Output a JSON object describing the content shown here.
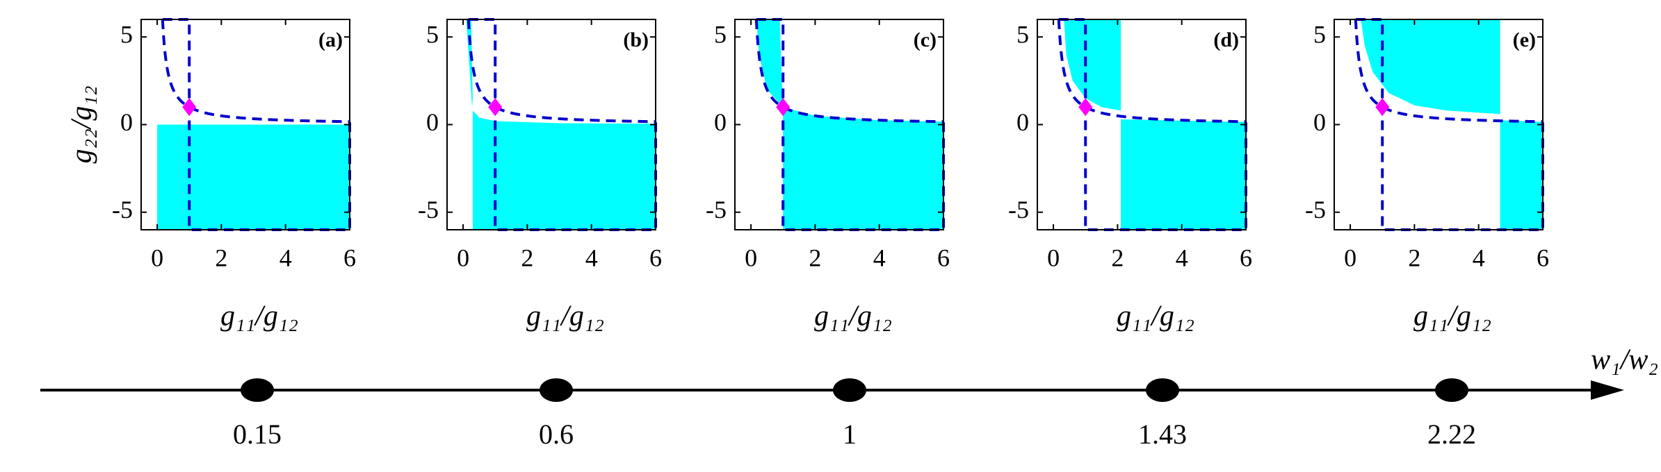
{
  "chart_data": [
    {
      "type": "region",
      "label": "(a)",
      "xlabel": "g₁₁/g₁₂",
      "ylabel": "g₂₂/g₁₂",
      "xlim": [
        -0.5,
        6
      ],
      "ylim": [
        -6,
        6
      ],
      "xticks": [
        0,
        2,
        4,
        6
      ],
      "yticks": [
        -5,
        0,
        5
      ],
      "color": "#00ffff",
      "line_color": "#0000cc",
      "point_color": "#ff00ff",
      "point": {
        "x": 1,
        "y": 1
      },
      "regions": [
        {
          "x": [
            0,
            6,
            6,
            0
          ],
          "y": [
            -6,
            -6,
            0,
            0
          ]
        }
      ]
    },
    {
      "type": "region",
      "label": "(b)",
      "xlabel": "g₁₁/g₁₂",
      "xlim": [
        -0.5,
        6
      ],
      "ylim": [
        -6,
        6
      ],
      "xticks": [
        0,
        2,
        4,
        6
      ],
      "yticks": [
        -5,
        0,
        5
      ],
      "color": "#00ffff",
      "line_color": "#0000cc",
      "point_color": "#ff00ff",
      "point": {
        "x": 1,
        "y": 1
      },
      "regions": [
        {
          "x": [
            0.1,
            0.25,
            0.3,
            0.28
          ],
          "y": [
            6,
            6,
            1.5,
            1
          ]
        },
        {
          "x": [
            0.3,
            0.5,
            1,
            3,
            6,
            6,
            0.3
          ],
          "y": [
            0.8,
            0.4,
            0.2,
            0.08,
            0.05,
            -6,
            -6
          ]
        }
      ]
    },
    {
      "type": "region",
      "label": "(c)",
      "xlabel": "g₁₁/g₁₂",
      "xlim": [
        -0.5,
        6
      ],
      "ylim": [
        -6,
        6
      ],
      "xticks": [
        0,
        2,
        4,
        6
      ],
      "yticks": [
        -5,
        0,
        5
      ],
      "color": "#00ffff",
      "line_color": "#0000cc",
      "point_color": "#ff00ff",
      "point": {
        "x": 1,
        "y": 1
      },
      "regions": [
        {
          "x": [
            0.17,
            0.9,
            0.95,
            1,
            0.5,
            0.25
          ],
          "y": [
            6,
            6,
            3,
            1,
            2,
            4
          ]
        },
        {
          "x": [
            1,
            2,
            4,
            6,
            6,
            1
          ],
          "y": [
            1,
            0.5,
            0.25,
            0.17,
            -6,
            -6
          ]
        }
      ]
    },
    {
      "type": "region",
      "label": "(d)",
      "xlabel": "g₁₁/g₁₂",
      "xlim": [
        -0.5,
        6
      ],
      "ylim": [
        -6,
        6
      ],
      "xticks": [
        0,
        2,
        4,
        6
      ],
      "yticks": [
        -5,
        0,
        5
      ],
      "color": "#00ffff",
      "line_color": "#0000cc",
      "point_color": "#ff00ff",
      "point": {
        "x": 1,
        "y": 1
      },
      "regions": [
        {
          "x": [
            0.33,
            2.1,
            2.1,
            1.5,
            1,
            0.6,
            0.4
          ],
          "y": [
            6,
            6,
            0.8,
            1,
            1.5,
            2.5,
            4
          ]
        },
        {
          "x": [
            2.1,
            6,
            6,
            2.1
          ],
          "y": [
            -6,
            -6,
            0.15,
            0.3
          ]
        }
      ]
    },
    {
      "type": "region",
      "label": "(e)",
      "xlabel": "g₁₁/g₁₂",
      "xlim": [
        -0.5,
        6
      ],
      "ylim": [
        -6,
        6
      ],
      "xticks": [
        0,
        2,
        4,
        6
      ],
      "yticks": [
        -5,
        0,
        5
      ],
      "color": "#00ffff",
      "line_color": "#0000cc",
      "point_color": "#ff00ff",
      "point": {
        "x": 1,
        "y": 1
      },
      "regions": [
        {
          "x": [
            0.33,
            4.67,
            4.67,
            3,
            2,
            1.2,
            0.7,
            0.45
          ],
          "y": [
            6,
            6,
            0.6,
            0.8,
            1.1,
            1.8,
            3,
            4.5
          ]
        },
        {
          "x": [
            4.67,
            6,
            6,
            4.67
          ],
          "y": [
            -6,
            -6,
            0.15,
            0.25
          ]
        }
      ]
    }
  ],
  "axis_line": {
    "label": "w₁/w₂",
    "values": [
      0.15,
      0.6,
      1,
      1.43,
      2.22
    ]
  }
}
